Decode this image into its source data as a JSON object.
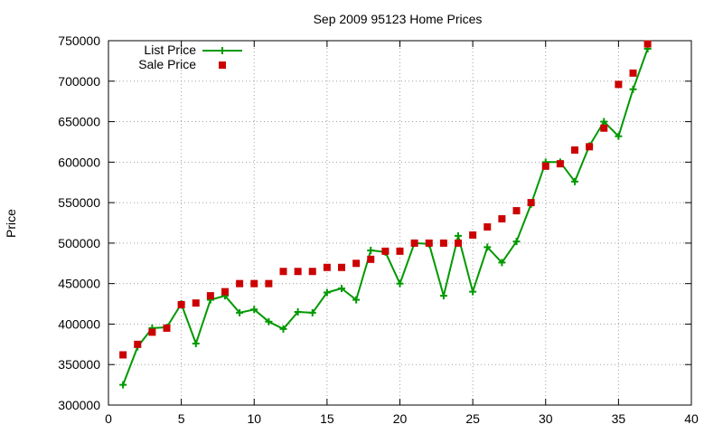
{
  "chart_data": {
    "type": "line",
    "title": "Sep 2009 95123 Home Prices",
    "xlabel": "",
    "ylabel": "Price",
    "xlim": [
      0,
      40
    ],
    "ylim": [
      300000,
      750000
    ],
    "x_ticks": [
      0,
      5,
      10,
      15,
      20,
      25,
      30,
      35,
      40
    ],
    "y_ticks": [
      300000,
      350000,
      400000,
      450000,
      500000,
      550000,
      600000,
      650000,
      700000,
      750000
    ],
    "grid": true,
    "legend_position": "top-left",
    "series": [
      {
        "name": "List Price",
        "style": "linespoints",
        "marker": "plus",
        "color": "#009900",
        "x": [
          1,
          2,
          3,
          4,
          5,
          6,
          7,
          8,
          9,
          10,
          11,
          12,
          13,
          14,
          15,
          16,
          17,
          18,
          19,
          20,
          21,
          22,
          23,
          24,
          25,
          26,
          27,
          28,
          29,
          30,
          31,
          32,
          33,
          34,
          35,
          36,
          37
        ],
        "y": [
          325000,
          372000,
          395000,
          396000,
          425000,
          376000,
          430000,
          435000,
          414000,
          418000,
          403000,
          394000,
          415000,
          414000,
          439000,
          444000,
          430000,
          491000,
          489000,
          450000,
          500000,
          499000,
          435000,
          509000,
          440000,
          495000,
          476000,
          502000,
          548000,
          600000,
          600000,
          576000,
          620000,
          650000,
          632000,
          690000,
          740000
        ]
      },
      {
        "name": "Sale Price",
        "style": "points",
        "marker": "square",
        "color": "#cc0000",
        "x": [
          1,
          2,
          3,
          4,
          5,
          6,
          7,
          8,
          9,
          10,
          11,
          12,
          13,
          14,
          15,
          16,
          17,
          18,
          19,
          20,
          21,
          22,
          23,
          24,
          25,
          26,
          27,
          28,
          29,
          30,
          31,
          32,
          33,
          34,
          35,
          36,
          37
        ],
        "y": [
          362000,
          375000,
          390000,
          395000,
          424000,
          426000,
          435000,
          440000,
          450000,
          450000,
          450000,
          465000,
          465000,
          465000,
          470000,
          470000,
          475000,
          480000,
          490000,
          490000,
          500000,
          500000,
          500000,
          500000,
          510000,
          520000,
          530000,
          540000,
          550000,
          595000,
          598000,
          615000,
          619000,
          642000,
          696000,
          710000,
          746000
        ]
      }
    ]
  }
}
